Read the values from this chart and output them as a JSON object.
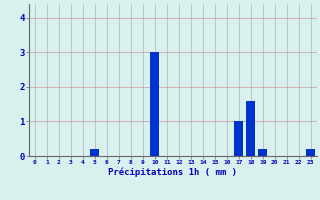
{
  "hours": [
    0,
    1,
    2,
    3,
    4,
    5,
    6,
    7,
    8,
    9,
    10,
    11,
    12,
    13,
    14,
    15,
    16,
    17,
    18,
    19,
    20,
    21,
    22,
    23
  ],
  "values": [
    0,
    0,
    0,
    0,
    0,
    0.2,
    0,
    0,
    0,
    0,
    3.0,
    0,
    0,
    0,
    0,
    0,
    0,
    1.0,
    1.6,
    0.2,
    0,
    0,
    0,
    0.2
  ],
  "bar_color": "#0033cc",
  "background_color": "#d8f0ee",
  "grid_color": "#b0b0b0",
  "axis_color": "#666666",
  "text_color": "#0000bb",
  "xlabel": "Précipitations 1h ( mm )",
  "ylim": [
    0,
    4.4
  ],
  "yticks": [
    0,
    1,
    2,
    3,
    4
  ],
  "xlim": [
    -0.5,
    23.5
  ]
}
